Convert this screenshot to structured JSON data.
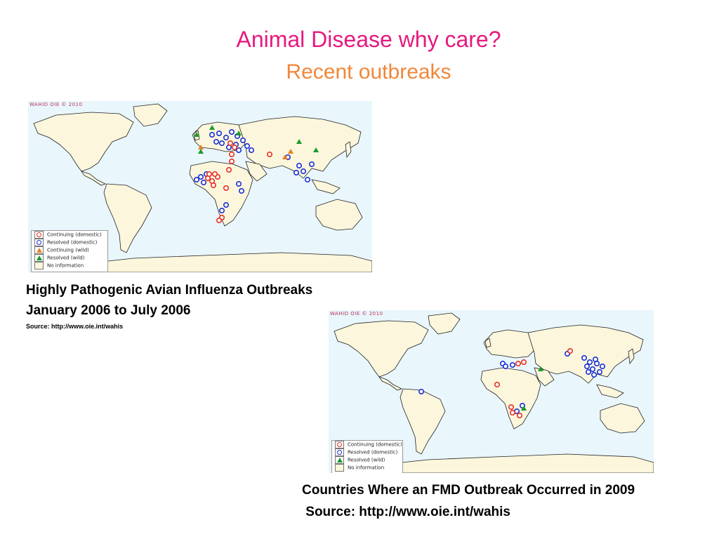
{
  "slide": {
    "title": "Animal Disease why care?",
    "subtitle": "Recent outbreaks"
  },
  "map1": {
    "copyright": "WAHID OIE © 2010",
    "legend": [
      {
        "label": "Continuing (domestic)",
        "symbol": "ring",
        "color": "#e8301e"
      },
      {
        "label": "Resolved (domestic)",
        "symbol": "ring",
        "color": "#1b2fd0"
      },
      {
        "label": "Continuing (wild)",
        "symbol": "triangle",
        "color": "#e8801e"
      },
      {
        "label": "Resolved (wild)",
        "symbol": "triangle",
        "color": "#1a9a2a"
      },
      {
        "label": "No information",
        "symbol": "blank",
        "color": "#fbf6dc"
      }
    ],
    "caption_line1": "Highly Pathogenic Avian Influenza Outbreaks",
    "caption_line2": "January 2006 to July 2006",
    "source": "Source: http://www.oie.int/wahis"
  },
  "map2": {
    "copyright": "WAHID OIE © 2010",
    "legend": [
      {
        "label": "Continuing (domestic)",
        "symbol": "ring",
        "color": "#e8301e"
      },
      {
        "label": "Resolved (domestic)",
        "symbol": "ring",
        "color": "#1b2fd0"
      },
      {
        "label": "Resolved (wild)",
        "symbol": "triangle",
        "color": "#1a9a2a"
      },
      {
        "label": "No information",
        "symbol": "blank",
        "color": "#fbf6dc"
      }
    ],
    "caption_line1": "Countries Where an FMD Outbreak Occurred in 2009",
    "source": " Source: http://www.oie.int/wahis"
  },
  "colors": {
    "title": "#e6197e",
    "subtitle": "#f0873a",
    "ocean": "#e9f6fc",
    "land": "#fbf6dc",
    "continuing_domestic": "#e8301e",
    "resolved_domestic": "#1b2fd0",
    "continuing_wild": "#e8801e",
    "resolved_wild": "#1a9a2a"
  }
}
